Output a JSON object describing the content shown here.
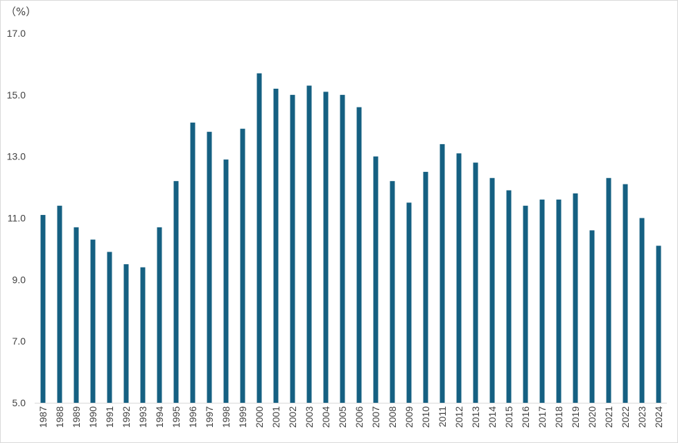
{
  "chart_data": {
    "type": "bar",
    "title": "",
    "unit_label": "（%）",
    "xlabel": "",
    "ylabel": "",
    "ylim": [
      5.0,
      17.0
    ],
    "yticks": [
      "5.0",
      "7.0",
      "9.0",
      "11.0",
      "13.0",
      "15.0",
      "17.0"
    ],
    "grid": false,
    "bar_color": "#156082",
    "categories": [
      "1987",
      "1988",
      "1989",
      "1990",
      "1991",
      "1992",
      "1993",
      "1994",
      "1995",
      "1996",
      "1997",
      "1998",
      "1999",
      "2000",
      "2001",
      "2002",
      "2003",
      "2004",
      "2005",
      "2006",
      "2007",
      "2008",
      "2009",
      "2010",
      "2011",
      "2012",
      "2013",
      "2014",
      "2015",
      "2016",
      "2017",
      "2018",
      "2019",
      "2020",
      "2021",
      "2022",
      "2023",
      "2024"
    ],
    "values": [
      11.1,
      11.4,
      10.7,
      10.3,
      9.9,
      9.5,
      9.4,
      10.7,
      12.2,
      14.1,
      13.8,
      12.9,
      13.9,
      15.7,
      15.2,
      15.0,
      15.3,
      15.1,
      15.0,
      14.6,
      13.0,
      12.2,
      11.5,
      12.5,
      13.4,
      13.1,
      12.8,
      12.3,
      11.9,
      11.4,
      11.6,
      11.6,
      11.8,
      10.6,
      12.3,
      12.1,
      11.0,
      10.1
    ]
  }
}
